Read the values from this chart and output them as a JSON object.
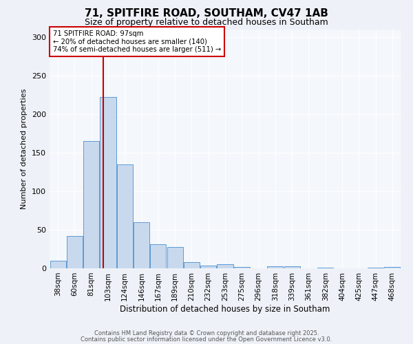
{
  "title1": "71, SPITFIRE ROAD, SOUTHAM, CV47 1AB",
  "title2": "Size of property relative to detached houses in Southam",
  "xlabel": "Distribution of detached houses by size in Southam",
  "ylabel": "Number of detached properties",
  "bin_labels": [
    "38sqm",
    "60sqm",
    "81sqm",
    "103sqm",
    "124sqm",
    "146sqm",
    "167sqm",
    "189sqm",
    "210sqm",
    "232sqm",
    "253sqm",
    "275sqm",
    "296sqm",
    "318sqm",
    "339sqm",
    "361sqm",
    "382sqm",
    "404sqm",
    "425sqm",
    "447sqm",
    "468sqm"
  ],
  "bin_left_edges": [
    38,
    60,
    81,
    103,
    124,
    146,
    167,
    189,
    210,
    232,
    253,
    275,
    296,
    318,
    339,
    361,
    382,
    404,
    425,
    447,
    468
  ],
  "values": [
    10,
    42,
    165,
    222,
    135,
    60,
    31,
    28,
    8,
    4,
    5,
    2,
    0,
    3,
    3,
    0,
    1,
    0,
    0,
    1,
    2
  ],
  "bar_color": "#c9d9ed",
  "bar_edge_color": "#5b9bd5",
  "red_line_x": 97,
  "annotation_title": "71 SPITFIRE ROAD: 97sqm",
  "annotation_line1": "← 20% of detached houses are smaller (140)",
  "annotation_line2": "74% of semi-detached houses are larger (511) →",
  "annotation_box_color": "#ffffff",
  "annotation_border_color": "#cc0000",
  "red_line_color": "#cc0000",
  "ylim": [
    0,
    310
  ],
  "yticks": [
    0,
    50,
    100,
    150,
    200,
    250,
    300
  ],
  "footer1": "Contains HM Land Registry data © Crown copyright and database right 2025.",
  "footer2": "Contains public sector information licensed under the Open Government Licence v3.0.",
  "bg_color": "#eef2f8",
  "plot_bg_color": "#f4f7fc",
  "grid_color": "#ffffff",
  "title1_fontsize": 11,
  "title2_fontsize": 9,
  "xlabel_fontsize": 8.5,
  "ylabel_fontsize": 8,
  "tick_fontsize": 7.5,
  "footer_fontsize": 6.0
}
